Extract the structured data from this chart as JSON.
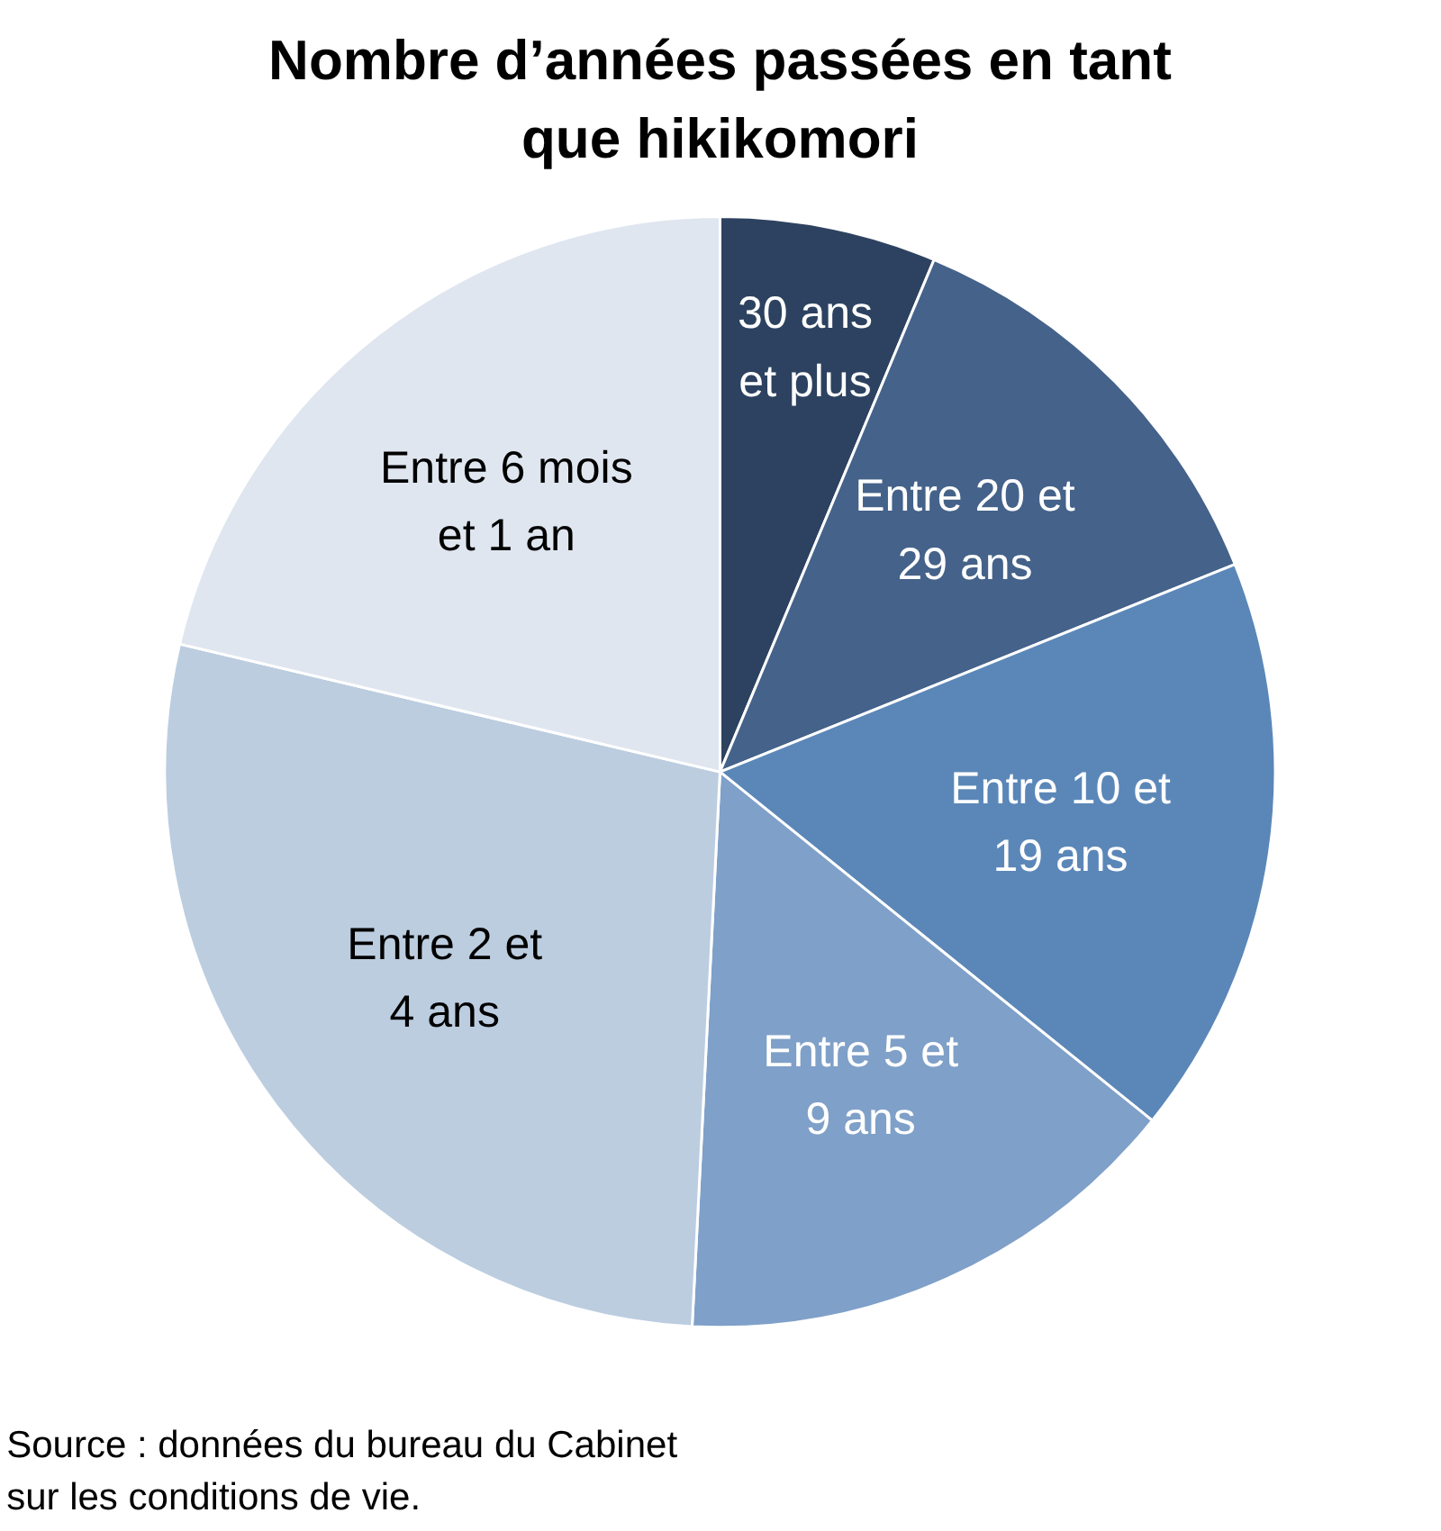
{
  "chart_data": {
    "type": "pie",
    "title": "Nombre d’années passées en tant\nque hikikomori",
    "categories": [
      "30 ans\net plus",
      "Entre 20 et\n29 ans",
      "Entre 10 et\n19 ans",
      "Entre 5 et\n9 ans",
      "Entre 2 et\n4 ans",
      "Entre 6 mois\net 1 an"
    ],
    "values": [
      6.3,
      12.6,
      16.9,
      15.0,
      27.9,
      21.3
    ],
    "colors": [
      "#2d4260",
      "#44628a",
      "#5b87b8",
      "#7fa0c8",
      "#bccde0",
      "#dfe6f0"
    ],
    "annotations": [
      "Source : données du bureau du Cabinet\nsur les conditions de vie."
    ]
  }
}
